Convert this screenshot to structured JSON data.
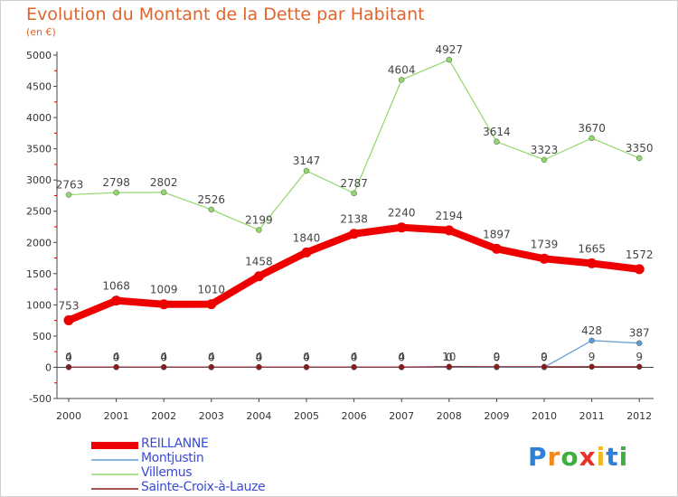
{
  "header": {
    "title": "Evolution du Montant de la Dette par Habitant",
    "subtitle": "(en €)"
  },
  "brand": {
    "text": "Proxiti",
    "letters": [
      {
        "char": "P",
        "color": "#2f7fd8"
      },
      {
        "char": "r",
        "color": "#f08a1c"
      },
      {
        "char": "o",
        "color": "#3fae3f"
      },
      {
        "char": "x",
        "color": "#e8332a"
      },
      {
        "char": "i",
        "color": "#f2b81e"
      },
      {
        "char": "t",
        "color": "#2f7fd8"
      },
      {
        "char": "i",
        "color": "#3fae3f"
      }
    ]
  },
  "chart_data": {
    "type": "line",
    "title": "Evolution du Montant de la Dette par Habitant",
    "subtitle": "(en €)",
    "xlabel": "",
    "ylabel": "",
    "x": [
      "2000",
      "2001",
      "2002",
      "2003",
      "2004",
      "2005",
      "2006",
      "2007",
      "2008",
      "2009",
      "2010",
      "2011",
      "2012"
    ],
    "ylim": [
      -500,
      5000
    ],
    "yticks": [
      -500,
      0,
      500,
      1000,
      1500,
      2000,
      2500,
      3000,
      3500,
      4000,
      4500,
      5000
    ],
    "grid": false,
    "legend_position": "bottom-left",
    "series": [
      {
        "name": "REILLANNE",
        "color": "#ee0000",
        "values": [
          753,
          1068,
          1009,
          1010,
          1458,
          1840,
          2138,
          2240,
          2194,
          1897,
          1739,
          1665,
          1572
        ],
        "labels": [
          "753",
          "1068",
          "1009",
          "1010",
          "1458",
          "1840",
          "2138",
          "2240",
          "2194",
          "1897",
          "1739",
          "1665",
          "1572"
        ]
      },
      {
        "name": "Montjustin",
        "color": "#5b9bd5",
        "values": [
          0,
          0,
          0,
          0,
          0,
          0,
          0,
          0,
          0,
          0,
          0,
          428,
          387
        ],
        "labels": [
          "0",
          "0",
          "0",
          "0",
          "0",
          "0",
          "0",
          "0",
          "0",
          "0",
          "0",
          "428",
          "387"
        ]
      },
      {
        "name": "Villemus",
        "color": "#90d86a",
        "values": [
          2763,
          2798,
          2802,
          2526,
          2199,
          3147,
          2787,
          4604,
          4927,
          3614,
          3323,
          3670,
          3350
        ],
        "labels": [
          "2763",
          "2798",
          "2802",
          "2526",
          "2199",
          "3147",
          "2787",
          "4604",
          "4927",
          "3614",
          "3323",
          "3670",
          "3350"
        ]
      },
      {
        "name": "Sainte-Croix-à-Lauze",
        "color": "#8b1a1a",
        "values": [
          4,
          4,
          4,
          4,
          4,
          4,
          4,
          4,
          10,
          9,
          9,
          9,
          9
        ],
        "labels": [
          "4",
          "4",
          "4",
          "4",
          "4",
          "4",
          "4",
          "4",
          "10",
          "9",
          "9",
          "9",
          "9"
        ]
      }
    ]
  }
}
